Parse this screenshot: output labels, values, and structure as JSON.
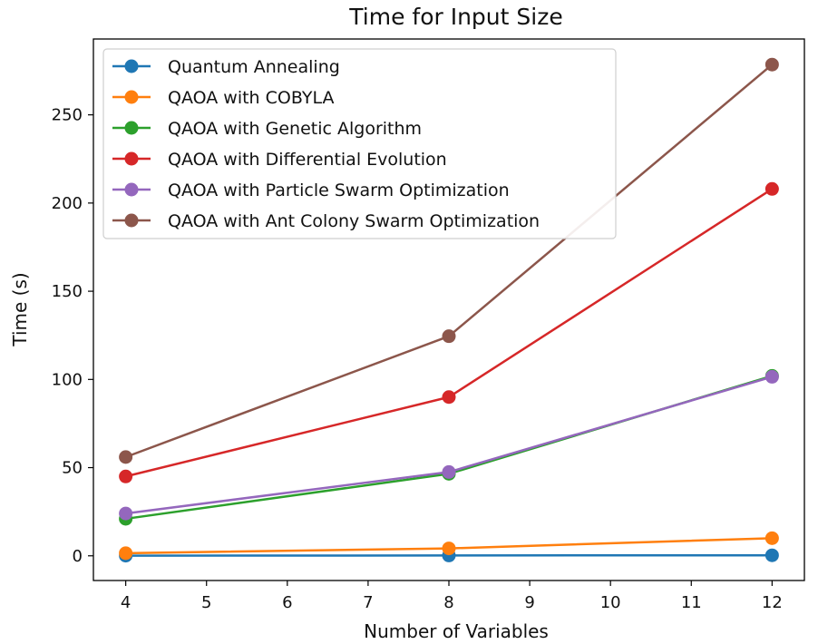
{
  "chart_data": {
    "type": "line",
    "title": "Time for Input Size",
    "xlabel": "Number of Variables",
    "ylabel": "Time (s)",
    "x": [
      4,
      8,
      12
    ],
    "xticks": [
      4,
      5,
      6,
      7,
      8,
      9,
      10,
      11,
      12
    ],
    "yticks": [
      0,
      50,
      100,
      150,
      200,
      250
    ],
    "xlim": [
      3.6,
      12.4
    ],
    "ylim": [
      -14,
      293
    ],
    "grid": false,
    "legend_position": "top-left",
    "series": [
      {
        "name": "Quantum Annealing",
        "color": "#1f77b4",
        "values": [
          0.1,
          0.2,
          0.3
        ]
      },
      {
        "name": "QAOA with COBYLA",
        "color": "#ff7f0e",
        "values": [
          1.5,
          4.2,
          10.0
        ]
      },
      {
        "name": "QAOA with Genetic Algorithm",
        "color": "#2ca02c",
        "values": [
          21.0,
          46.5,
          102.0
        ]
      },
      {
        "name": "QAOA with Differential Evolution",
        "color": "#d62728",
        "values": [
          45.0,
          90.0,
          208.0
        ]
      },
      {
        "name": "QAOA with Particle Swarm Optimization",
        "color": "#9467bd",
        "values": [
          24.0,
          47.5,
          101.5
        ]
      },
      {
        "name": "QAOA with Ant Colony Swarm Optimization",
        "color": "#8c564b",
        "values": [
          56.0,
          124.5,
          278.5
        ]
      }
    ]
  }
}
